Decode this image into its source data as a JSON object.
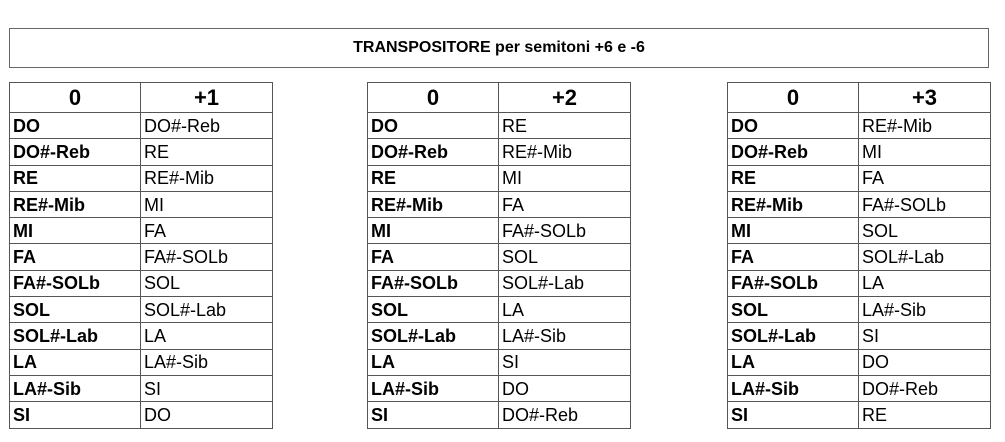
{
  "title": "TRANSPOSITORE per semitoni +6 e -6",
  "tables": [
    {
      "headers": [
        "0",
        "+1"
      ],
      "rows": [
        [
          "DO",
          "DO#-Reb"
        ],
        [
          "DO#-Reb",
          "RE"
        ],
        [
          "RE",
          "RE#-Mib"
        ],
        [
          "RE#-Mib",
          "MI"
        ],
        [
          "MI",
          "FA"
        ],
        [
          "FA",
          "FA#-SOLb"
        ],
        [
          "FA#-SOLb",
          "SOL"
        ],
        [
          "SOL",
          "SOL#-Lab"
        ],
        [
          "SOL#-Lab",
          "LA"
        ],
        [
          "LA",
          "LA#-Sib"
        ],
        [
          "LA#-Sib",
          "SI"
        ],
        [
          "SI",
          "DO"
        ]
      ]
    },
    {
      "headers": [
        "0",
        "+2"
      ],
      "rows": [
        [
          "DO",
          "RE"
        ],
        [
          "DO#-Reb",
          "RE#-Mib"
        ],
        [
          "RE",
          "MI"
        ],
        [
          "RE#-Mib",
          "FA"
        ],
        [
          "MI",
          "FA#-SOLb"
        ],
        [
          "FA",
          "SOL"
        ],
        [
          "FA#-SOLb",
          "SOL#-Lab"
        ],
        [
          "SOL",
          "LA"
        ],
        [
          "SOL#-Lab",
          "LA#-Sib"
        ],
        [
          "LA",
          "SI"
        ],
        [
          "LA#-Sib",
          "DO"
        ],
        [
          "SI",
          "DO#-Reb"
        ]
      ]
    },
    {
      "headers": [
        "0",
        "+3"
      ],
      "rows": [
        [
          "DO",
          "RE#-Mib"
        ],
        [
          "DO#-Reb",
          "MI"
        ],
        [
          "RE",
          "FA"
        ],
        [
          "RE#-Mib",
          "FA#-SOLb"
        ],
        [
          "MI",
          "SOL"
        ],
        [
          "FA",
          "SOL#-Lab"
        ],
        [
          "FA#-SOLb",
          "LA"
        ],
        [
          "SOL",
          "LA#-Sib"
        ],
        [
          "SOL#-Lab",
          "SI"
        ],
        [
          "LA",
          "DO"
        ],
        [
          "LA#-Sib",
          "DO#-Reb"
        ],
        [
          "SI",
          "RE"
        ]
      ]
    }
  ]
}
